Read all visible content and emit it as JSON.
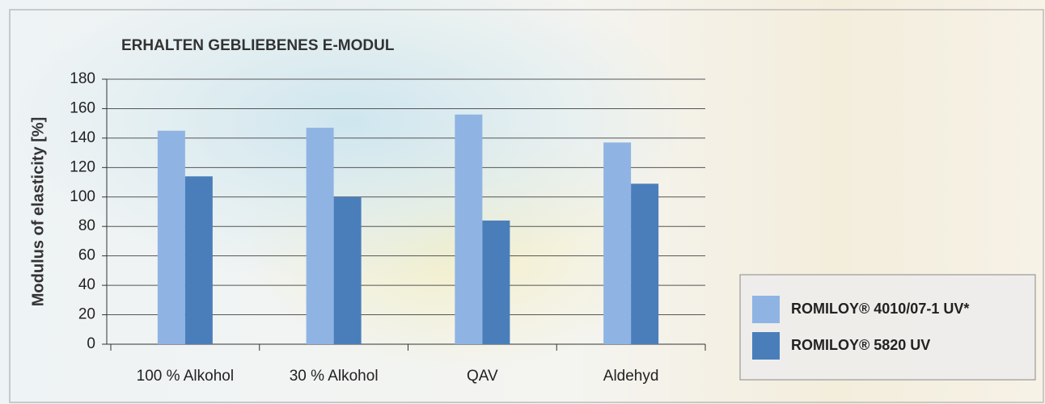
{
  "chart_data": {
    "type": "bar",
    "title": "ERHALTEN GEBLIEBENES E-MODUL",
    "y_label": "Modulus of elasticity [%]",
    "categories": [
      "100 % Alkohol",
      "30 % Alkohol",
      "QAV",
      "Aldehyd"
    ],
    "series": [
      {
        "name": "ROMILOY® 4010/07-1 UV*",
        "color": "#8fb4e3",
        "values": [
          145,
          147,
          156,
          137
        ]
      },
      {
        "name": "ROMILOY® 5820 UV",
        "color": "#4a7ebb",
        "values": [
          114,
          100,
          84,
          109
        ]
      }
    ],
    "ylim": [
      0,
      180
    ],
    "yticks": [
      0,
      20,
      40,
      60,
      80,
      100,
      120,
      140,
      160,
      180
    ],
    "grid": true,
    "legend": "lower right"
  }
}
